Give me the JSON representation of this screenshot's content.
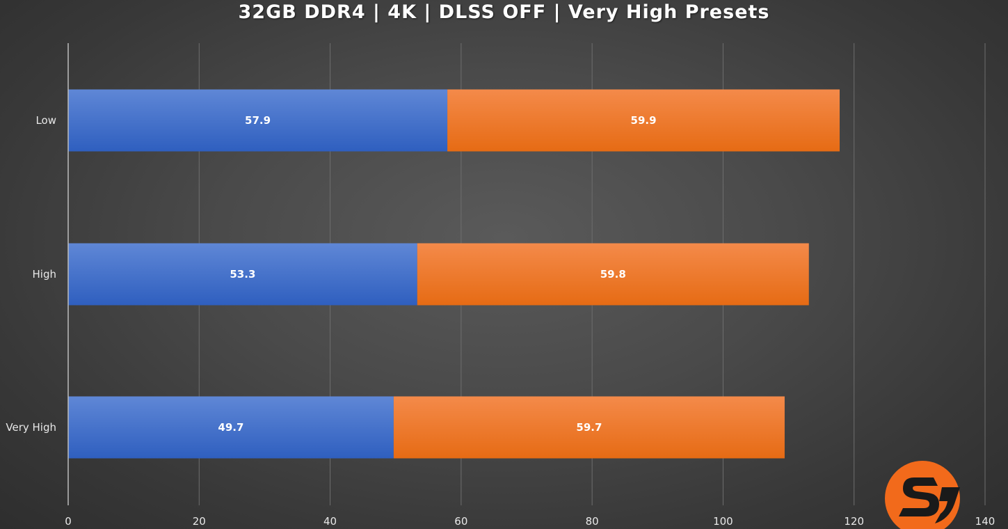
{
  "chart_data": {
    "type": "bar",
    "orientation": "horizontal",
    "stacked": true,
    "title": "32GB DDR4 | 4K | DLSS OFF | Very High Presets",
    "xlabel": "",
    "ylabel": "",
    "categories": [
      "Low",
      "High",
      "Very High"
    ],
    "series": [
      {
        "values": [
          57.9,
          53.3,
          49.7
        ],
        "color": "#4472c4"
      },
      {
        "values": [
          59.9,
          59.8,
          59.7
        ],
        "color": "#ed7d31"
      }
    ],
    "xlim": [
      0,
      140
    ],
    "x_ticks": [
      0,
      20,
      40,
      60,
      80,
      100,
      120,
      140
    ],
    "grid": "vertical",
    "legend": "none"
  },
  "watermark": {
    "type": "logo",
    "text": "SG",
    "color": "#f26a1b"
  }
}
